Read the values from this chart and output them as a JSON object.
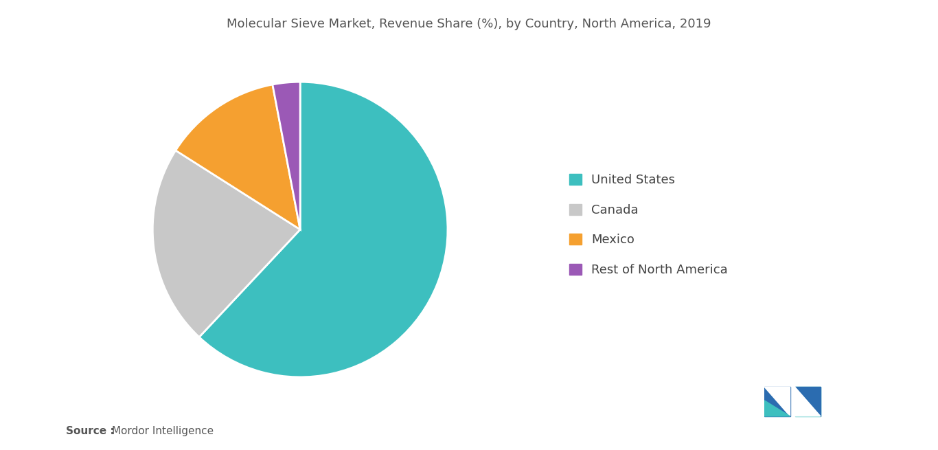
{
  "title": "Molecular Sieve Market, Revenue Share (%), by Country, North America, 2019",
  "labels": [
    "United States",
    "Canada",
    "Mexico",
    "Rest of North America"
  ],
  "values": [
    62,
    22,
    13,
    3
  ],
  "colors": [
    "#3dbfbf",
    "#c8c8c8",
    "#f5a030",
    "#9b59b6"
  ],
  "startangle": 90,
  "background_color": "#ffffff",
  "source_bold": "Source :",
  "source_regular": " Mordor Intelligence",
  "title_fontsize": 13,
  "legend_fontsize": 13,
  "source_fontsize": 11
}
